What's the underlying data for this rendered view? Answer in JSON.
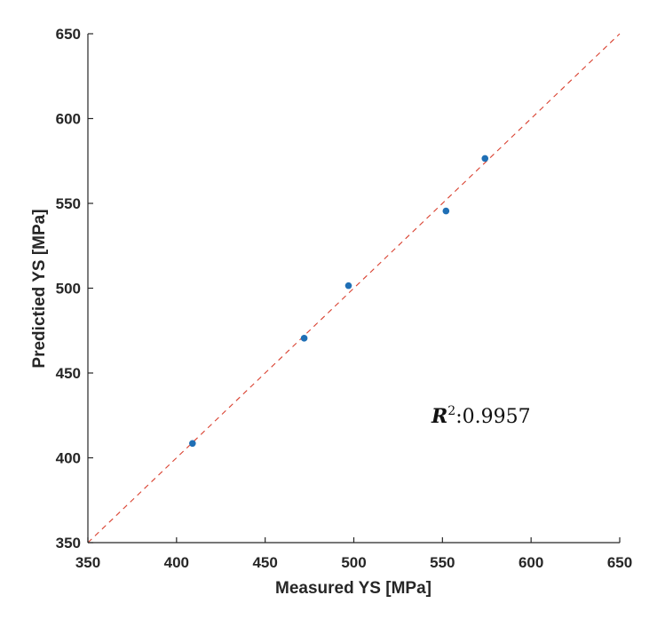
{
  "chart_data": {
    "type": "scatter",
    "title": "",
    "xlabel": "Measured YS [MPa]",
    "ylabel": "Predictied YS [MPa]",
    "xlim": [
      350,
      650
    ],
    "ylim": [
      350,
      650
    ],
    "xticks": [
      350,
      400,
      450,
      500,
      550,
      600,
      650
    ],
    "yticks": [
      350,
      400,
      450,
      500,
      550,
      600,
      650
    ],
    "grid": false,
    "reference_line": {
      "type": "y=x",
      "style": "dashed",
      "color": "#d9402f"
    },
    "point_color": "#1f6fb5",
    "series": [
      {
        "points": [
          {
            "x": 409,
            "y": 408.5
          },
          {
            "x": 472,
            "y": 470.5
          },
          {
            "x": 497,
            "y": 501.5
          },
          {
            "x": 552,
            "y": 545.5
          },
          {
            "x": 574,
            "y": 576.5
          }
        ]
      }
    ],
    "annotation": {
      "symbol": "R",
      "exponent": "2",
      "text": ":0.9957"
    }
  }
}
